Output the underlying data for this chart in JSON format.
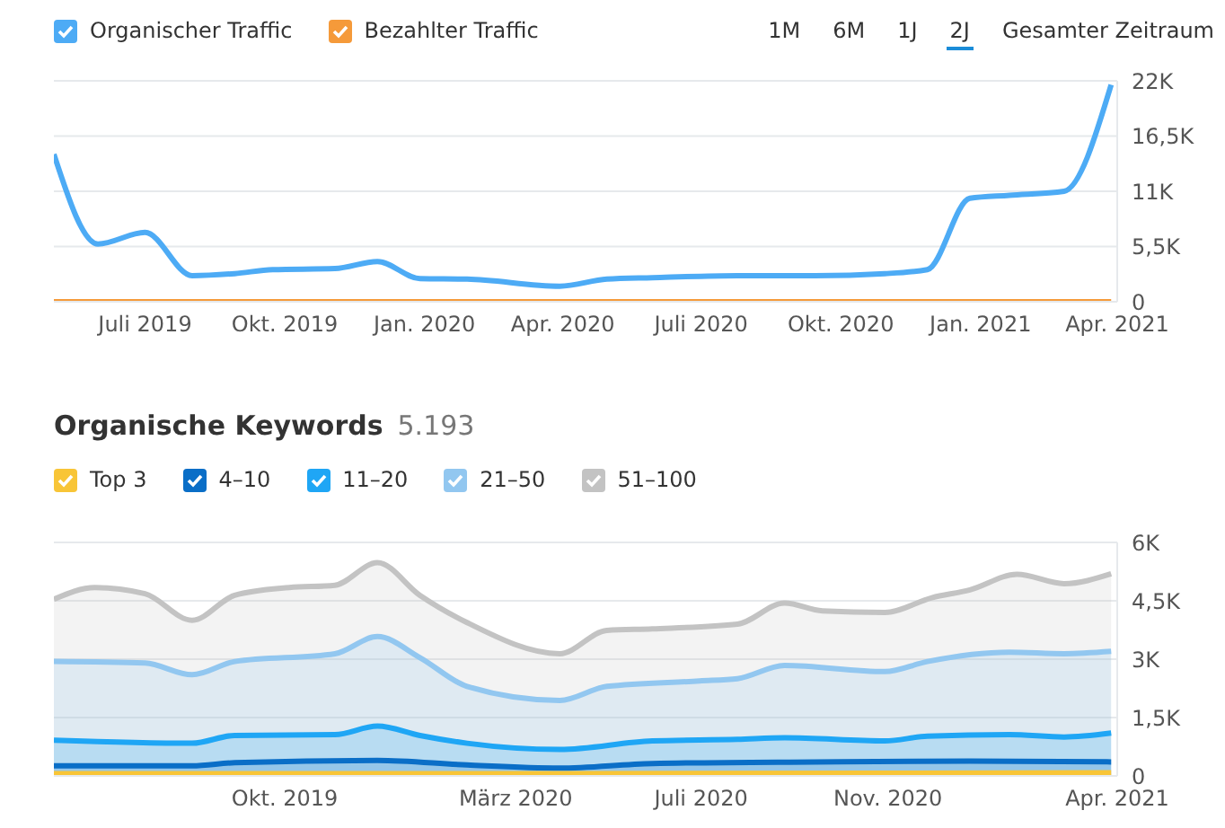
{
  "chart_data": [
    {
      "type": "line",
      "legend": "top left",
      "grid": "y",
      "annotations": [
        "1M",
        "6M",
        "1J",
        "2J",
        "Gesamter Zeitraum"
      ],
      "xlim": [
        "2019-05-02",
        "2021-04-01"
      ],
      "xticks": [
        {
          "value": "2019-07-01",
          "label": "Juli 2019"
        },
        {
          "value": "2019-10-01",
          "label": "Okt. 2019"
        },
        {
          "value": "2020-01-01",
          "label": "Jan. 2020"
        },
        {
          "value": "2020-04-01",
          "label": "Apr. 2020"
        },
        {
          "value": "2020-07-01",
          "label": "Juli 2020"
        },
        {
          "value": "2020-10-01",
          "label": "Okt. 2020"
        },
        {
          "value": "2021-01-01",
          "label": "Jan. 2021"
        },
        {
          "value": "2021-04-01",
          "label": "Apr. 2021"
        }
      ],
      "ylim": [
        0,
        22000
      ],
      "yticks": [
        0,
        {
          "value": 5500,
          "label": "5,5K"
        },
        {
          "value": 11000,
          "label": "11K"
        },
        {
          "value": 16500,
          "label": "16,5K"
        },
        {
          "value": 22000,
          "label": "22K"
        }
      ],
      "series": [
        {
          "name": "Organischer Traffic",
          "color": "#4dabf5",
          "x": [
            "2019-05-02",
            "2019-05-31",
            "2019-07-01",
            "2019-08-01",
            "2019-08-29",
            "2019-09-23",
            "2019-11-03",
            "2019-12-01",
            "2019-12-29",
            "2020-01-29",
            "2020-03-30",
            "2020-04-30",
            "2020-05-30",
            "2020-07-25",
            "2020-09-14",
            "2020-10-30",
            "2020-11-27",
            "2020-12-25",
            "2021-01-20",
            "2021-02-25",
            "2021-03-28"
          ],
          "values": [
            14700,
            5750,
            6900,
            2600,
            2800,
            3200,
            3300,
            4000,
            2300,
            2250,
            1550,
            2250,
            2400,
            2600,
            2600,
            2800,
            3200,
            10300,
            10600,
            11000,
            21600
          ]
        },
        {
          "name": "Bezahlter Traffic",
          "color": "#f59a3a",
          "x": [
            "2019-05-02",
            "2021-03-28"
          ],
          "values": [
            0,
            0
          ]
        }
      ]
    },
    {
      "type": "area",
      "title": "Organische Keywords",
      "subtitle": "5.193",
      "legend": "top left",
      "grid": "y",
      "xlim": [
        "2019-05-02",
        "2021-04-01"
      ],
      "xticks": [
        {
          "value": "2019-10-01",
          "label": "Okt. 2019"
        },
        {
          "value": "2020-03-01",
          "label": "März 2020"
        },
        {
          "value": "2020-07-01",
          "label": "Juli 2020"
        },
        {
          "value": "2020-11-01",
          "label": "Nov. 2020"
        },
        {
          "value": "2021-04-01",
          "label": "Apr. 2021"
        }
      ],
      "ylim": [
        0,
        6000
      ],
      "yticks": [
        0,
        {
          "value": 1500,
          "label": "1,5K"
        },
        {
          "value": 3000,
          "label": "3K"
        },
        {
          "value": 4500,
          "label": "4,5K"
        },
        {
          "value": 6000,
          "label": "6K"
        }
      ],
      "series": [
        {
          "name": "Top 3",
          "color": "#f8c537",
          "x": [
            "2019-05-02",
            "2020-03-30",
            "2021-03-28"
          ],
          "values": [
            60,
            60,
            80
          ]
        },
        {
          "name": "4–10",
          "color": "#0a6ec7",
          "x": [
            "2019-05-02",
            "2019-08-01",
            "2019-08-29",
            "2019-12-01",
            "2020-01-29",
            "2020-03-30",
            "2020-05-30",
            "2020-09-14",
            "2020-12-25",
            "2021-03-28"
          ],
          "values": [
            260,
            260,
            340,
            400,
            280,
            200,
            320,
            360,
            380,
            360
          ]
        },
        {
          "name": "11–20",
          "color": "#1fa6f5",
          "x": [
            "2019-05-02",
            "2019-08-01",
            "2019-08-29",
            "2019-11-03",
            "2019-12-01",
            "2019-12-29",
            "2020-01-29",
            "2020-03-30",
            "2020-05-30",
            "2020-07-25",
            "2020-08-25",
            "2020-10-30",
            "2020-11-27",
            "2021-01-20",
            "2021-02-25",
            "2021-03-28"
          ],
          "values": [
            920,
            840,
            1040,
            1060,
            1280,
            1040,
            840,
            680,
            900,
            940,
            980,
            900,
            1020,
            1060,
            1000,
            1100
          ]
        },
        {
          "name": "21–50",
          "color": "#92c7f0",
          "x": [
            "2019-05-02",
            "2019-07-01",
            "2019-08-01",
            "2019-08-29",
            "2019-11-03",
            "2019-12-01",
            "2019-12-29",
            "2020-01-29",
            "2020-03-30",
            "2020-04-30",
            "2020-06-30",
            "2020-07-25",
            "2020-08-25",
            "2020-10-30",
            "2020-11-27",
            "2021-01-20",
            "2021-02-25",
            "2021-03-28"
          ],
          "values": [
            2940,
            2900,
            2600,
            2940,
            3140,
            3580,
            3040,
            2300,
            1940,
            2300,
            2440,
            2500,
            2840,
            2680,
            2940,
            3180,
            3140,
            3200
          ]
        },
        {
          "name": "51–100",
          "color": "#c3c3c3",
          "x": [
            "2019-05-02",
            "2019-05-29",
            "2019-07-01",
            "2019-08-01",
            "2019-08-29",
            "2019-10-04",
            "2019-11-03",
            "2019-12-01",
            "2019-12-29",
            "2020-01-29",
            "2020-03-30",
            "2020-04-30",
            "2020-05-30",
            "2020-07-25",
            "2020-08-25",
            "2020-09-19",
            "2020-10-30",
            "2020-11-30",
            "2020-12-25",
            "2021-01-25",
            "2021-02-25",
            "2021-03-28"
          ],
          "values": [
            4540,
            4840,
            4680,
            4000,
            4640,
            4840,
            4900,
            5480,
            4640,
            3940,
            3140,
            3740,
            3780,
            3900,
            4440,
            4240,
            4200,
            4580,
            4780,
            5180,
            4940,
            5193
          ]
        }
      ]
    }
  ]
}
